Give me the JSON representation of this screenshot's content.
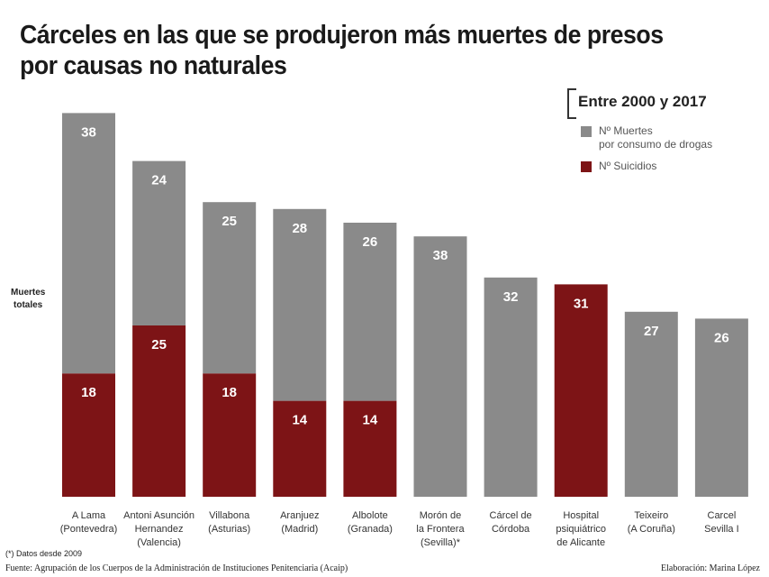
{
  "chart_data": {
    "type": "bar",
    "stacked": true,
    "title": "Cárceles en las que se produjeron más muertes de presos por causas no naturales",
    "subtitle": "Entre 2000 y 2017",
    "ylabel": "Muertes totales",
    "legend_position": "top-right",
    "grid": false,
    "categories": [
      "A Lama (Pontevedra)",
      "Antoni Asunción Hernandez (Valencia)",
      "Villabona (Asturias)",
      "Aranjuez (Madrid)",
      "Albolote (Granada)",
      "Morón de la Frontera (Sevilla)*",
      "Cárcel de Córdoba",
      "Hospital psiquiátrico de Alicante",
      "Teixeiro (A Coruña)",
      "Carcel Sevilla I"
    ],
    "category_lines": [
      [
        "A Lama",
        "(Pontevedra)"
      ],
      [
        "Antoni Asunción",
        "Hernandez",
        "(Valencia)"
      ],
      [
        "Villabona",
        "(Asturias)"
      ],
      [
        "Aranjuez",
        "(Madrid)"
      ],
      [
        "Albolote",
        "(Granada)"
      ],
      [
        "Morón de",
        "la Frontera",
        "(Sevilla)*"
      ],
      [
        "Cárcel de",
        "Córdoba"
      ],
      [
        "Hospital",
        "psiquiátrico",
        "de Alicante"
      ],
      [
        "Teixeiro",
        "(A Coruña)"
      ],
      [
        "Carcel",
        "Sevilla I"
      ]
    ],
    "series": [
      {
        "name": "Nº Suicidios",
        "color": "#7d1416",
        "values": [
          18,
          25,
          18,
          14,
          14,
          null,
          null,
          31,
          null,
          null
        ]
      },
      {
        "name": "Nº Muertes por consumo de drogas",
        "color": "#8a8a8a",
        "values": [
          38,
          24,
          25,
          28,
          26,
          38,
          32,
          null,
          27,
          26
        ]
      }
    ]
  },
  "legend": {
    "title": "Entre 2000 y 2017",
    "drugs_line1": "Nº Muertes",
    "drugs_line2": "por consumo de drogas",
    "suicides": "Nº Suicidios"
  },
  "title_line1": "Cárceles en las que se produjeron más muertes de presos",
  "title_line2": "por causas no naturales",
  "ylabel_line1": "Muertes",
  "ylabel_line2": "totales",
  "note": "(*) Datos desde 2009",
  "source": "Fuente: Agrupación de los Cuerpos de la Administración de Instituciones Penitenciaria (Acaip)",
  "credit": "Elaboración: Marina López"
}
